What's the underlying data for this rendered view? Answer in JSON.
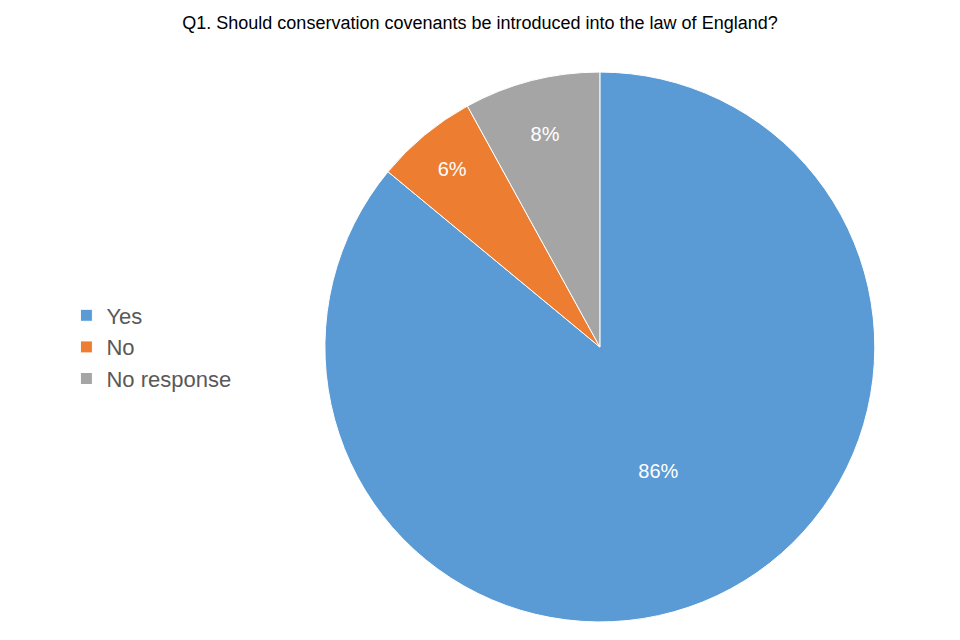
{
  "chart_data": {
    "type": "pie",
    "title": "Q1. Should conservation covenants be introduced into the law of England?",
    "categories": [
      "Yes",
      "No",
      "No response"
    ],
    "values": [
      86,
      6,
      8
    ],
    "value_labels": [
      "86%",
      "6%",
      "8%"
    ],
    "colors": [
      "#5b9bd5",
      "#ed7d31",
      "#a5a5a5"
    ],
    "data_labels": true,
    "legend": "left"
  }
}
